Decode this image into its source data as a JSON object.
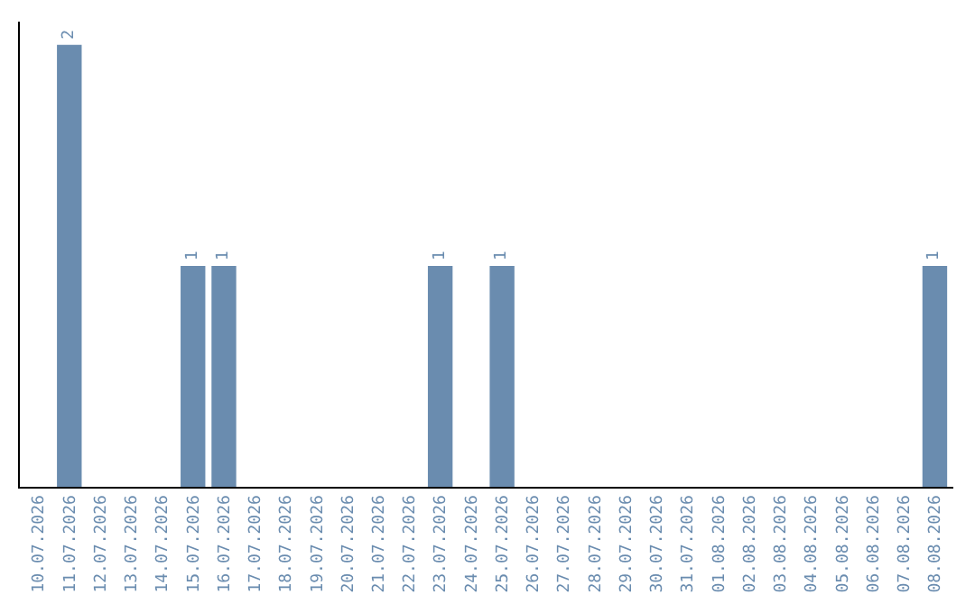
{
  "chart_data": {
    "type": "bar",
    "categories": [
      "10.07.2026",
      "11.07.2026",
      "12.07.2026",
      "13.07.2026",
      "14.07.2026",
      "15.07.2026",
      "16.07.2026",
      "17.07.2026",
      "18.07.2026",
      "19.07.2026",
      "20.07.2026",
      "21.07.2026",
      "22.07.2026",
      "23.07.2026",
      "24.07.2026",
      "25.07.2026",
      "26.07.2026",
      "27.07.2026",
      "28.07.2026",
      "29.07.2026",
      "30.07.2026",
      "31.07.2026",
      "01.08.2026",
      "02.08.2026",
      "03.08.2026",
      "04.08.2026",
      "05.08.2026",
      "06.08.2026",
      "07.08.2026",
      "08.08.2026"
    ],
    "values": [
      0,
      2,
      0,
      0,
      0,
      1,
      1,
      0,
      0,
      0,
      0,
      0,
      0,
      1,
      0,
      1,
      0,
      0,
      0,
      0,
      0,
      0,
      0,
      0,
      0,
      0,
      0,
      0,
      0,
      1
    ],
    "value_labels": [
      null,
      "2",
      null,
      null,
      null,
      "1",
      "1",
      null,
      null,
      null,
      null,
      null,
      null,
      "1",
      null,
      "1",
      null,
      null,
      null,
      null,
      null,
      null,
      null,
      null,
      null,
      null,
      null,
      null,
      null,
      "1"
    ],
    "color": "#6a8caf",
    "tick_labels": "x"
  }
}
